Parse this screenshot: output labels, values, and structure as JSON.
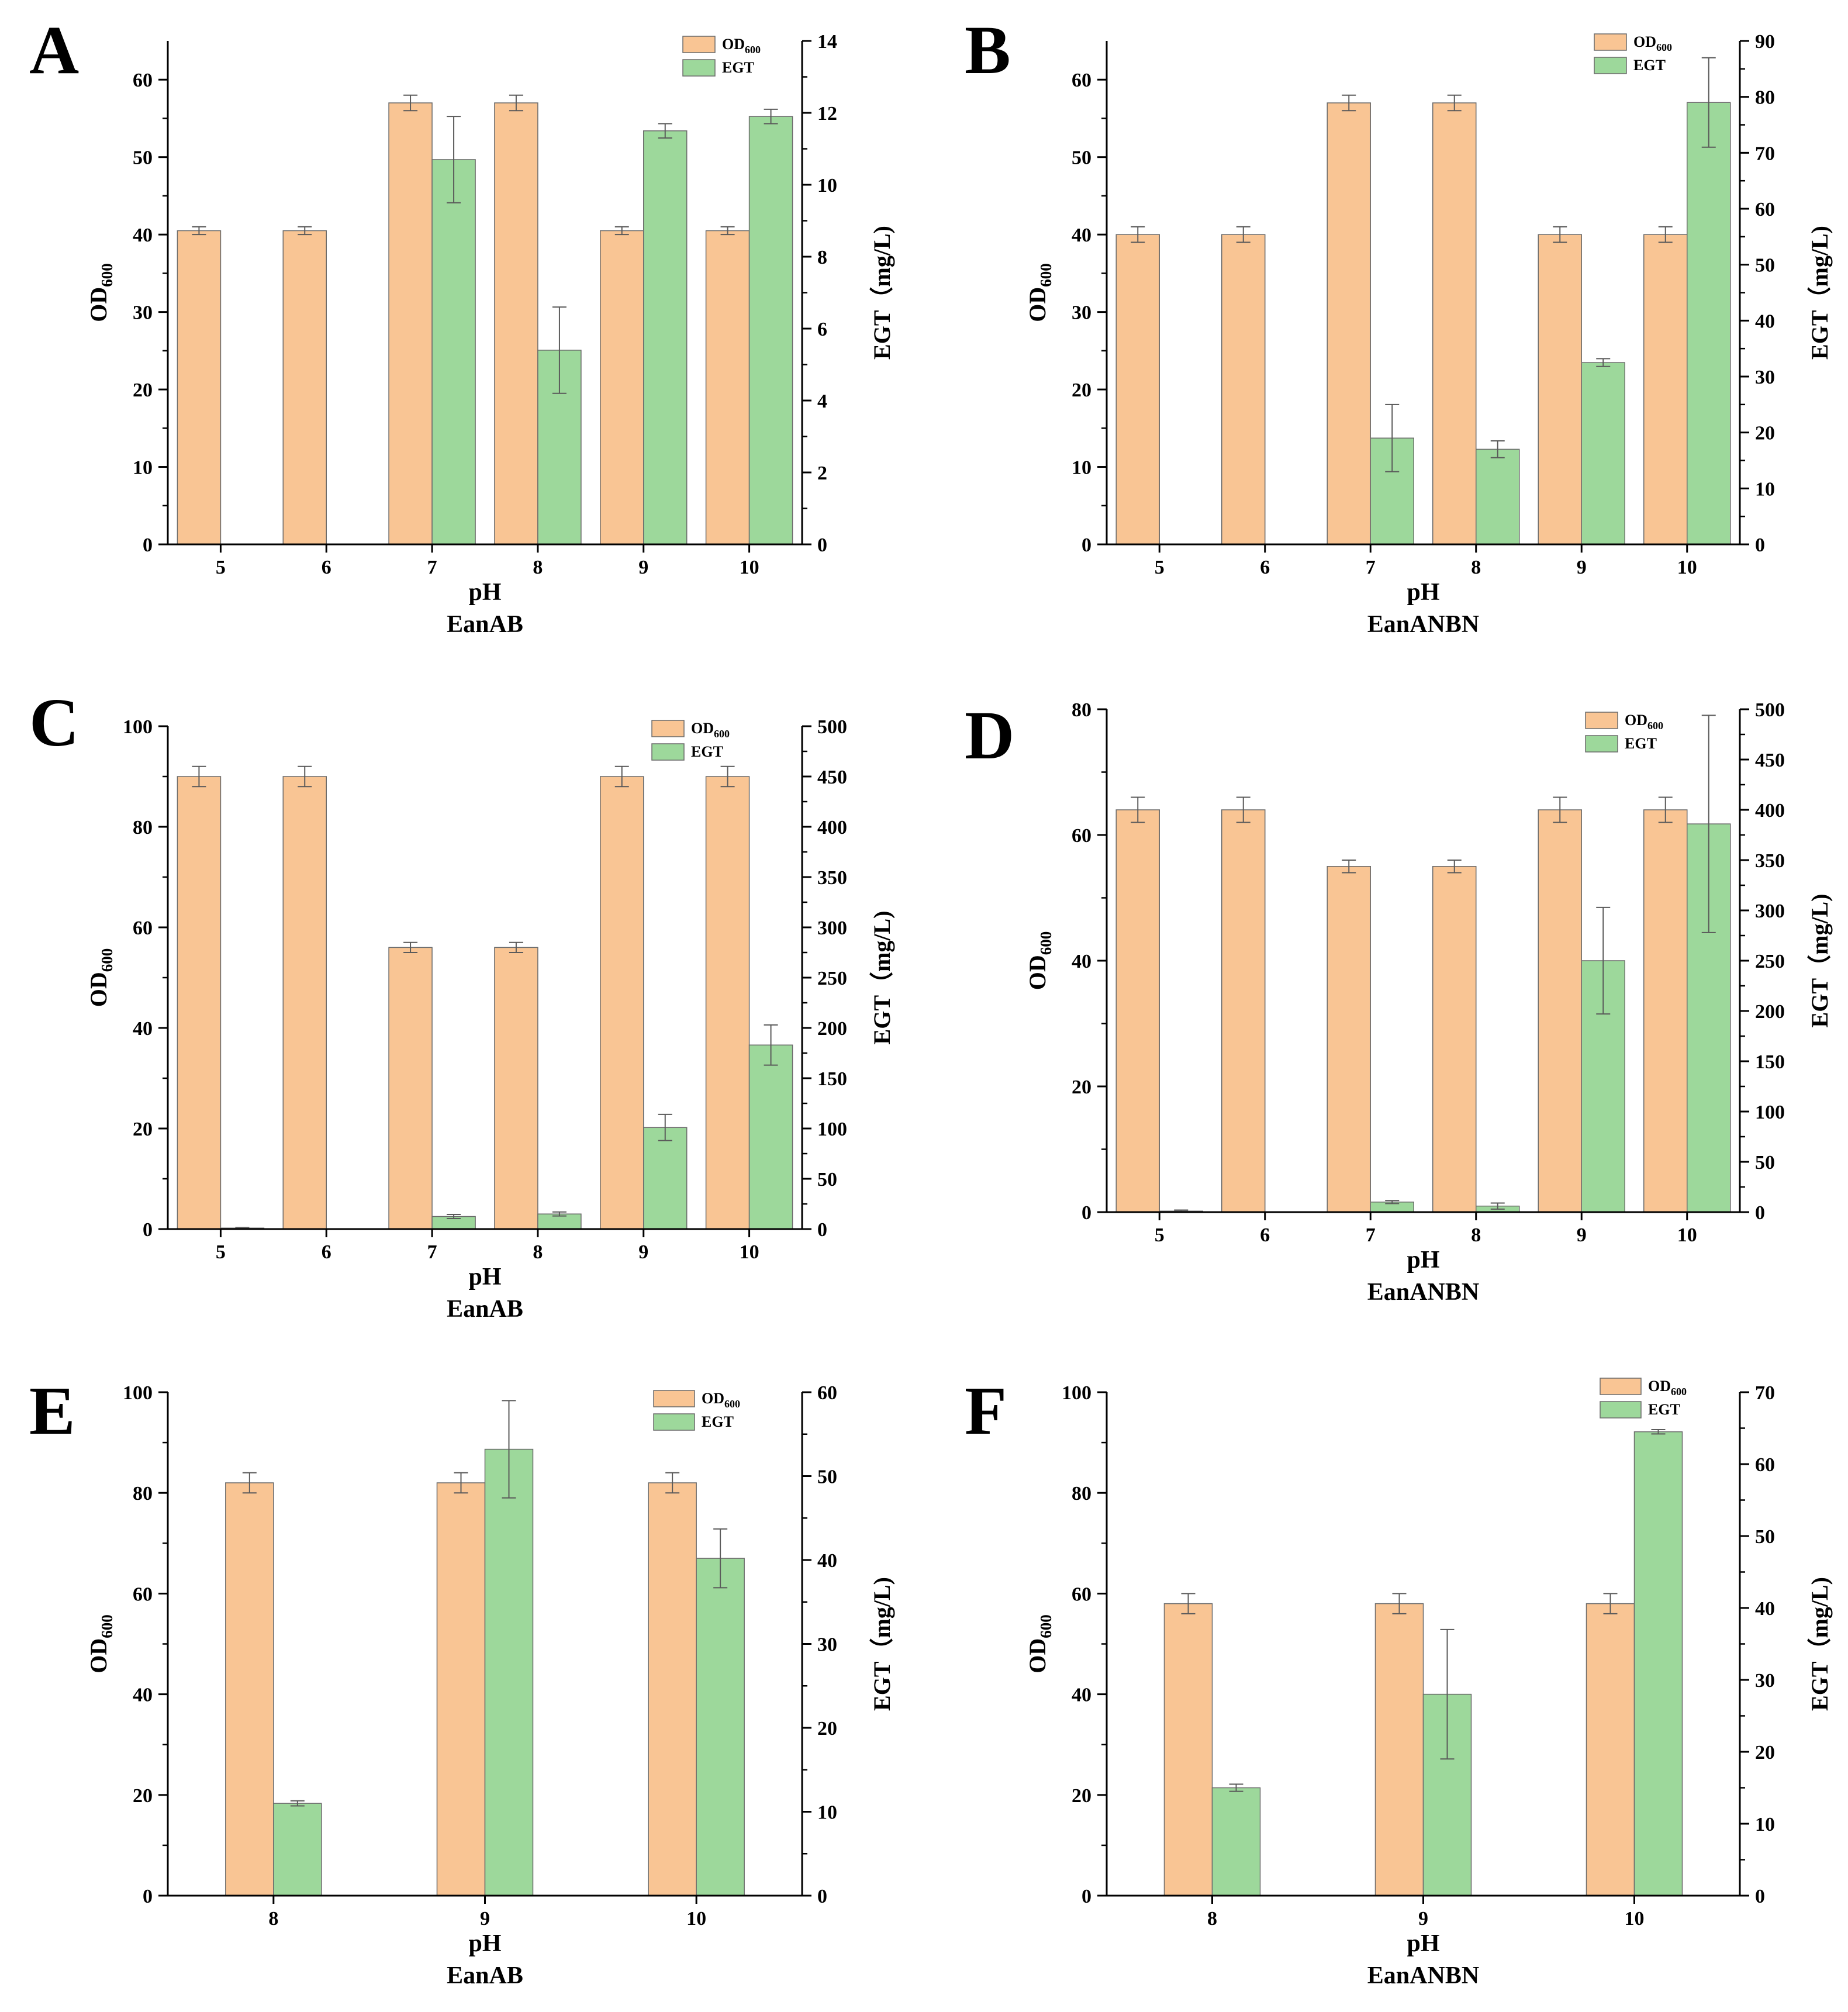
{
  "colors": {
    "od_fill": "#f9c594",
    "egt_fill": "#9dd89b",
    "bar_stroke": "#6b6b6b",
    "axis": "#000000",
    "error_bar": "#5a5a5a"
  },
  "chart_data": [
    {
      "panel": "A",
      "type": "bar",
      "categories": [
        "5",
        "6",
        "7",
        "8",
        "9",
        "10"
      ],
      "xlabel": "pH",
      "strain": "EanAB",
      "ylabel_left": "OD600",
      "ylabel_right": "EGT（mg/L)",
      "ylim_left": [
        0,
        65
      ],
      "ylim_right": [
        0,
        14
      ],
      "yticks_left": [
        0,
        10,
        20,
        30,
        40,
        50,
        60
      ],
      "yticks_right": [
        0,
        2,
        4,
        6,
        8,
        10,
        12,
        14
      ],
      "legend": {
        "od_main": "OD",
        "od_sub": "600",
        "egt": "EGT"
      },
      "series": [
        {
          "name": "OD600",
          "axis": "left",
          "values": [
            40.5,
            40.5,
            57,
            57,
            40.5,
            40.5
          ],
          "errors": [
            0.5,
            0.5,
            1,
            1,
            0.5,
            0.5
          ]
        },
        {
          "name": "EGT",
          "axis": "right",
          "values": [
            0,
            0,
            10.7,
            5.4,
            11.5,
            11.9
          ],
          "errors": [
            0,
            0,
            1.2,
            1.2,
            0.2,
            0.2
          ]
        }
      ]
    },
    {
      "panel": "B",
      "type": "bar",
      "categories": [
        "5",
        "6",
        "7",
        "8",
        "9",
        "10"
      ],
      "xlabel": "pH",
      "strain": "EanANBN",
      "ylabel_left": "OD600",
      "ylabel_right": "EGT（mg/L)",
      "ylim_left": [
        0,
        65
      ],
      "ylim_right": [
        0,
        90
      ],
      "yticks_left": [
        0,
        10,
        20,
        30,
        40,
        50,
        60
      ],
      "yticks_right": [
        0,
        10,
        20,
        30,
        40,
        50,
        60,
        70,
        80,
        90
      ],
      "legend": {
        "od_main": "OD",
        "od_sub": "600",
        "egt": "EGT"
      },
      "series": [
        {
          "name": "OD600",
          "axis": "left",
          "values": [
            40,
            40,
            57,
            57,
            40,
            40
          ],
          "errors": [
            1,
            1,
            1,
            1,
            1,
            1
          ]
        },
        {
          "name": "EGT",
          "axis": "right",
          "values": [
            0,
            0,
            19,
            17,
            32.5,
            79
          ],
          "errors": [
            0,
            0,
            6,
            1.5,
            0.7,
            8
          ]
        }
      ]
    },
    {
      "panel": "C",
      "type": "bar",
      "categories": [
        "5",
        "6",
        "7",
        "8",
        "9",
        "10"
      ],
      "xlabel": "pH",
      "strain": "EanAB",
      "ylabel_left": "OD600",
      "ylabel_right": "EGT（mg/L)",
      "ylim_left": [
        0,
        100
      ],
      "ylim_right": [
        0,
        500
      ],
      "yticks_left": [
        0,
        20,
        40,
        60,
        80,
        100
      ],
      "yticks_right": [
        0,
        50,
        100,
        150,
        200,
        250,
        300,
        350,
        400,
        450,
        500
      ],
      "legend": {
        "od_main": "OD",
        "od_sub": "600",
        "egt": "EGT"
      },
      "series": [
        {
          "name": "OD600",
          "axis": "left",
          "values": [
            90,
            90,
            56,
            56,
            90,
            90
          ],
          "errors": [
            2,
            2,
            1,
            1,
            2,
            2
          ]
        },
        {
          "name": "EGT",
          "axis": "right",
          "values": [
            1,
            0,
            12.5,
            15,
            101,
            183
          ],
          "errors": [
            0.5,
            0,
            2,
            2,
            13,
            20
          ]
        }
      ]
    },
    {
      "panel": "D",
      "type": "bar",
      "categories": [
        "5",
        "6",
        "7",
        "8",
        "9",
        "10"
      ],
      "xlabel": "pH",
      "strain": "EanANBN",
      "ylabel_left": "OD600",
      "ylabel_right": "EGT（mg/L)",
      "ylim_left": [
        0,
        80
      ],
      "ylim_right": [
        0,
        500
      ],
      "yticks_left": [
        0,
        20,
        40,
        60,
        80
      ],
      "yticks_right": [
        0,
        50,
        100,
        150,
        200,
        250,
        300,
        350,
        400,
        450,
        500
      ],
      "legend": {
        "od_main": "OD",
        "od_sub": "600",
        "egt": "EGT"
      },
      "series": [
        {
          "name": "OD600",
          "axis": "left",
          "values": [
            64,
            64,
            55,
            55,
            64,
            64
          ],
          "errors": [
            2,
            2,
            1,
            1,
            2,
            2
          ]
        },
        {
          "name": "EGT",
          "axis": "right",
          "values": [
            1,
            0,
            10,
            6,
            250,
            386
          ],
          "errors": [
            1,
            0,
            1.5,
            3,
            53,
            108
          ]
        }
      ]
    },
    {
      "panel": "E",
      "type": "bar",
      "categories": [
        "8",
        "9",
        "10"
      ],
      "xlabel": "pH",
      "strain": "EanAB",
      "ylabel_left": "OD600",
      "ylabel_right": "EGT（mg/L)",
      "ylim_left": [
        0,
        100
      ],
      "ylim_right": [
        0,
        60
      ],
      "yticks_left": [
        0,
        20,
        40,
        60,
        80,
        100
      ],
      "yticks_right": [
        0,
        10,
        20,
        30,
        40,
        50,
        60
      ],
      "legend": {
        "od_main": "OD",
        "od_sub": "600",
        "egt": "EGT"
      },
      "series": [
        {
          "name": "OD600",
          "axis": "left",
          "values": [
            82,
            82,
            82
          ],
          "errors": [
            2,
            2,
            2
          ]
        },
        {
          "name": "EGT",
          "axis": "right",
          "values": [
            11,
            53.2,
            40.2
          ],
          "errors": [
            0.3,
            5.8,
            3.5
          ]
        }
      ]
    },
    {
      "panel": "F",
      "type": "bar",
      "categories": [
        "8",
        "9",
        "10"
      ],
      "xlabel": "pH",
      "strain": "EanANBN",
      "ylabel_left": "OD600",
      "ylabel_right": "EGT（mg/L)",
      "ylim_left": [
        0,
        100
      ],
      "ylim_right": [
        0,
        70
      ],
      "yticks_left": [
        0,
        20,
        40,
        60,
        80,
        100
      ],
      "yticks_right": [
        0,
        10,
        20,
        30,
        40,
        50,
        60,
        70
      ],
      "legend": {
        "od_main": "OD",
        "od_sub": "600",
        "egt": "EGT"
      },
      "series": [
        {
          "name": "OD600",
          "axis": "left",
          "values": [
            58,
            58,
            58
          ],
          "errors": [
            2,
            2,
            2
          ]
        },
        {
          "name": "EGT",
          "axis": "right",
          "values": [
            15,
            28,
            64.5
          ],
          "errors": [
            0.5,
            9,
            0.3
          ]
        }
      ]
    }
  ]
}
